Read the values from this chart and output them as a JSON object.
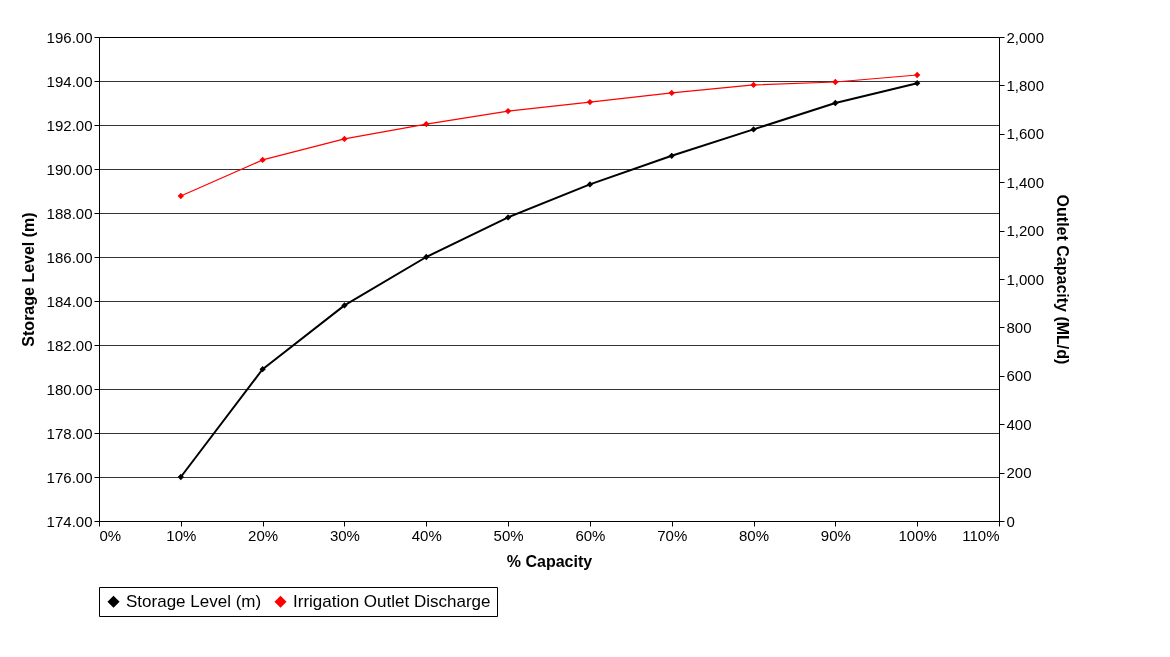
{
  "chart_data": {
    "type": "line",
    "xlabel": "% Capacity",
    "ylabel": "Storage Level (m)",
    "y2label": "Outlet Capacity (ML/d)",
    "x": [
      10,
      20,
      30,
      40,
      50,
      60,
      70,
      80,
      90,
      100
    ],
    "series": [
      {
        "name": "Storage Level (m)",
        "color": "#000000",
        "values": [
          176.0,
          180.9,
          183.8,
          186.0,
          187.8,
          189.3,
          190.6,
          191.8,
          193.0,
          193.9
        ]
      },
      {
        "name": "Irrigation Outlet Discharge",
        "color": "#ff0000",
        "axis": "y2",
        "values": [
          1343,
          1492,
          1579,
          1640,
          1694,
          1731,
          1769,
          1802,
          1814,
          1843
        ]
      }
    ],
    "xlim": [
      0,
      110
    ],
    "xticks": [
      {
        "value": 0,
        "label": "0%"
      },
      {
        "value": 10,
        "label": "10%"
      },
      {
        "value": 20,
        "label": "20%"
      },
      {
        "value": 30,
        "label": "30%"
      },
      {
        "value": 40,
        "label": "40%"
      },
      {
        "value": 50,
        "label": "50%"
      },
      {
        "value": 60,
        "label": "60%"
      },
      {
        "value": 70,
        "label": "70%"
      },
      {
        "value": 80,
        "label": "80%"
      },
      {
        "value": 90,
        "label": "90%"
      },
      {
        "value": 100,
        "label": "100%"
      },
      {
        "value": 110,
        "label": "110%"
      }
    ],
    "ylim": [
      174,
      196
    ],
    "yticks": [
      {
        "value": 174,
        "label": "174.00"
      },
      {
        "value": 176,
        "label": "176.00"
      },
      {
        "value": 178,
        "label": "178.00"
      },
      {
        "value": 180,
        "label": "180.00"
      },
      {
        "value": 182,
        "label": "182.00"
      },
      {
        "value": 184,
        "label": "184.00"
      },
      {
        "value": 186,
        "label": "186.00"
      },
      {
        "value": 188,
        "label": "188.00"
      },
      {
        "value": 190,
        "label": "190.00"
      },
      {
        "value": 192,
        "label": "192.00"
      },
      {
        "value": 194,
        "label": "194.00"
      },
      {
        "value": 196,
        "label": "196.00"
      }
    ],
    "y2lim": [
      0,
      2000
    ],
    "y2ticks": [
      0,
      200,
      400,
      600,
      800,
      {
        "value": 1000,
        "label": "1,000"
      },
      {
        "value": 1200,
        "label": "1,200"
      },
      {
        "value": 1400,
        "label": "1,400"
      },
      {
        "value": 1600,
        "label": "1,600"
      },
      {
        "value": 1800,
        "label": "1,800"
      },
      {
        "value": 2000,
        "label": "2,000"
      }
    ],
    "grid": "y",
    "legend": "bottom",
    "marker": "diamond",
    "line_style": "solid"
  }
}
